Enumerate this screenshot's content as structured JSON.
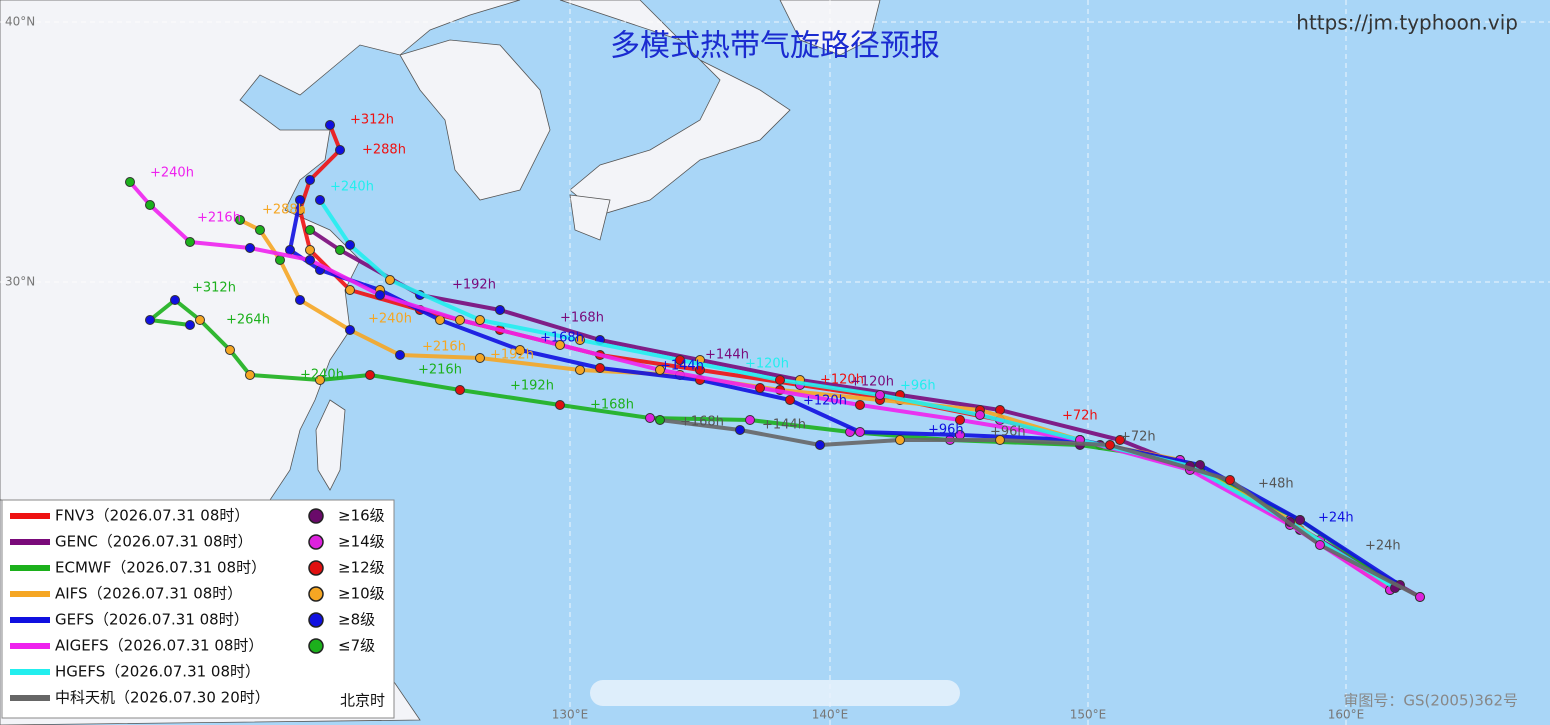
{
  "title": "多模式热带气旋路径预报",
  "url": "https://jm.typhoon.vip",
  "grid_labels": {
    "lat": [
      "40°N",
      "30°N"
    ],
    "lon": [
      "130°E",
      "140°E",
      "150°E",
      "160°E"
    ]
  },
  "models": [
    {
      "name": "FNV3（2026.07.31 08时）",
      "color": "#ee1111"
    },
    {
      "name": "GENC（2026.07.31 08时）",
      "color": "#7a0a7a"
    },
    {
      "name": "ECMWF（2026.07.31 08时）",
      "color": "#1cb01c"
    },
    {
      "name": "AIFS（2026.07.31 08时）",
      "color": "#f5a623"
    },
    {
      "name": "GEFS（2026.07.31 08时）",
      "color": "#1010e0"
    },
    {
      "name": "AIGEFS（2026.07.31 08时）",
      "color": "#ee22ee"
    },
    {
      "name": "HGEFS（2026.07.31 08时）",
      "color": "#22eeee"
    },
    {
      "name": "中科天机（2026.07.30 20时）",
      "color": "#666666"
    }
  ],
  "intensity": [
    {
      "label": "≥16级",
      "color": "#6a0a6a"
    },
    {
      "label": "≥14级",
      "color": "#dd22dd"
    },
    {
      "label": "≥12级",
      "color": "#e01010"
    },
    {
      "label": "≥10级",
      "color": "#f5a623"
    },
    {
      "label": "≥8级",
      "color": "#1010e0"
    },
    {
      "label": "≤7级",
      "color": "#1cb01c"
    }
  ],
  "timezone": "北京时",
  "map_number": "审图号：GS(2005)362号",
  "track_labels": [
    {
      "text": "+312h",
      "model": 0
    },
    {
      "text": "+288h",
      "model": 0
    },
    {
      "text": "+240h",
      "model": 5
    },
    {
      "text": "+216h",
      "model": 5
    },
    {
      "text": "+240h",
      "model": 6
    },
    {
      "text": "+288h",
      "model": 3
    },
    {
      "text": "+312h",
      "model": 2
    },
    {
      "text": "+264h",
      "model": 2
    },
    {
      "text": "+240h",
      "model": 2
    },
    {
      "text": "+216h",
      "model": 2
    },
    {
      "text": "+192h",
      "model": 2
    },
    {
      "text": "+168h",
      "model": 2
    },
    {
      "text": "+240h",
      "model": 3
    },
    {
      "text": "+216h",
      "model": 3
    },
    {
      "text": "+192h",
      "model": 3
    },
    {
      "text": "+192h",
      "model": 1
    },
    {
      "text": "+168h",
      "model": 1
    },
    {
      "text": "+144h",
      "model": 1
    },
    {
      "text": "+120h",
      "model": 0
    },
    {
      "text": "+120h",
      "model": 1
    },
    {
      "text": "+120h",
      "model": 4
    },
    {
      "text": "+120h",
      "model": 6
    },
    {
      "text": "+96h",
      "model": 6
    },
    {
      "text": "+96h",
      "model": 4
    },
    {
      "text": "+96h",
      "model": 7
    },
    {
      "text": "+144h",
      "model": 7
    },
    {
      "text": "+168h",
      "model": 7
    },
    {
      "text": "+72h",
      "model": 7
    },
    {
      "text": "+72h",
      "model": 0
    },
    {
      "text": "+48h",
      "model": 7
    },
    {
      "text": "+24h",
      "model": 7
    },
    {
      "text": "+24h",
      "model": 4
    },
    {
      "text": "+144h",
      "model": 4
    },
    {
      "text": "+168h",
      "model": 4
    }
  ]
}
